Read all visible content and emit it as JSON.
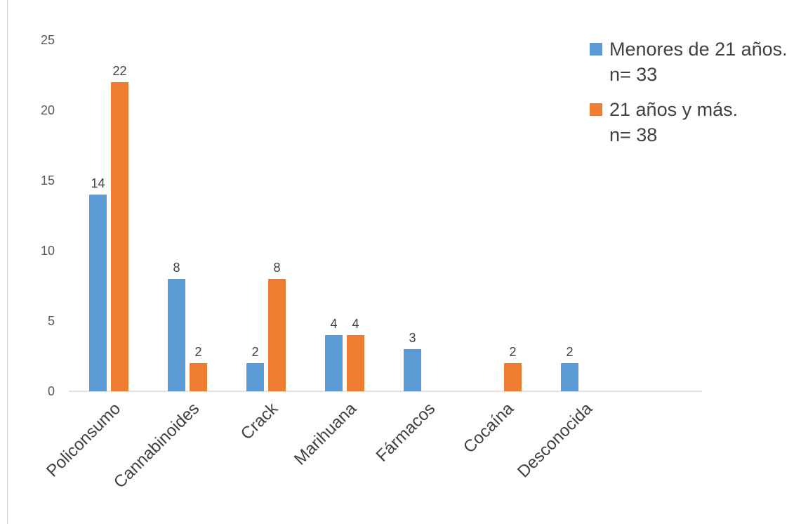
{
  "chart_data": {
    "type": "bar",
    "title": "",
    "xlabel": "",
    "ylabel": "",
    "categories": [
      "Policonsumo",
      "Cannabinoides",
      "Crack",
      "Marihuana",
      "Fármacos",
      "Cocaína",
      "Desconocida"
    ],
    "series": [
      {
        "name": "Menores de 21 años.",
        "name_line2": "n= 33",
        "color": "#5b9bd5",
        "values": [
          14,
          8,
          2,
          4,
          3,
          null,
          2
        ]
      },
      {
        "name": "21 años y más.",
        "name_line2": "n= 38",
        "color": "#ed7d31",
        "values": [
          22,
          2,
          8,
          4,
          null,
          2,
          null
        ]
      }
    ],
    "yticks": [
      "0",
      "5",
      "10",
      "15",
      "20",
      "25"
    ],
    "ylim": [
      0,
      25
    ],
    "grid": false,
    "legend_position": "top-right"
  }
}
